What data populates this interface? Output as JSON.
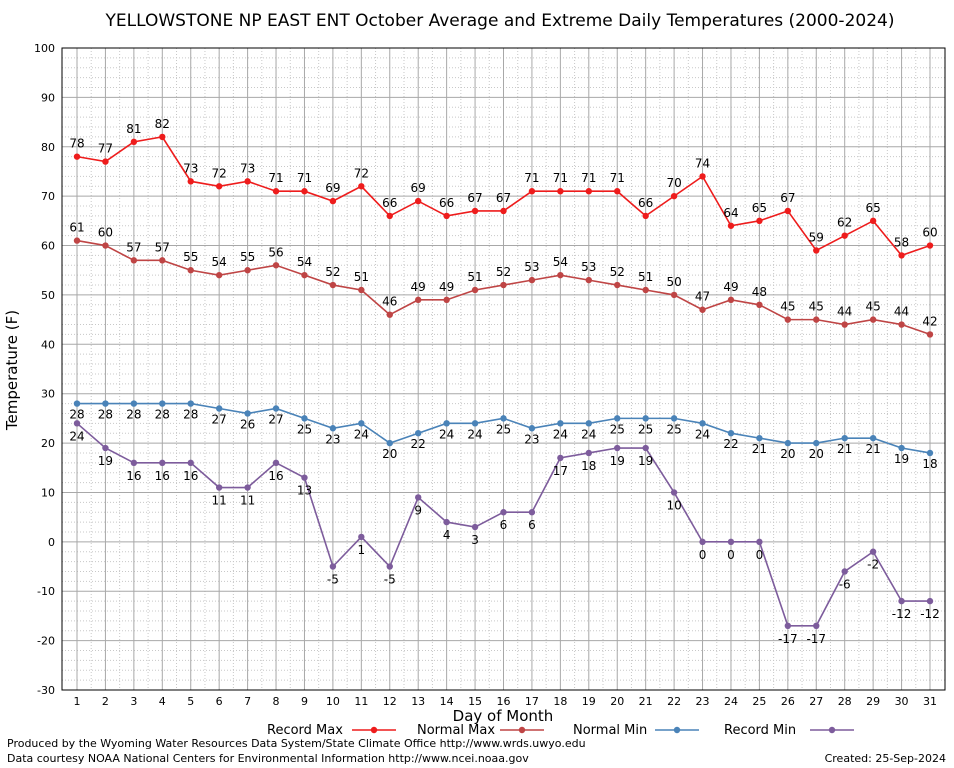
{
  "chart_data": {
    "type": "line",
    "title": "YELLOWSTONE NP EAST ENT October Average and Extreme Daily Temperatures (2000-2024)",
    "xlabel": "Day of Month",
    "ylabel": "Temperature (F)",
    "ylim": [
      -30,
      100
    ],
    "xlim": [
      1,
      31
    ],
    "yticks": [
      -30,
      -20,
      -10,
      0,
      10,
      20,
      30,
      40,
      50,
      60,
      70,
      80,
      90,
      100
    ],
    "x": [
      1,
      2,
      3,
      4,
      5,
      6,
      7,
      8,
      9,
      10,
      11,
      12,
      13,
      14,
      15,
      16,
      17,
      18,
      19,
      20,
      21,
      22,
      23,
      24,
      25,
      26,
      27,
      28,
      29,
      30,
      31
    ],
    "grid": true,
    "legend_position": "bottom",
    "series": [
      {
        "name": "Record Max",
        "color": "#ee1c1c",
        "values": [
          78,
          77,
          81,
          82,
          73,
          72,
          73,
          71,
          71,
          69,
          72,
          66,
          69,
          66,
          67,
          67,
          71,
          71,
          71,
          71,
          66,
          70,
          74,
          64,
          65,
          67,
          59,
          62,
          65,
          58,
          60
        ]
      },
      {
        "name": "Normal Max",
        "color": "#bf4545",
        "values": [
          61,
          60,
          57,
          57,
          55,
          54,
          55,
          56,
          54,
          52,
          51,
          46,
          49,
          49,
          51,
          52,
          53,
          54,
          53,
          52,
          51,
          50,
          47,
          49,
          48,
          45,
          45,
          44,
          45,
          44,
          42
        ]
      },
      {
        "name": "Normal Min",
        "color": "#4a83b8",
        "values": [
          28,
          28,
          28,
          28,
          28,
          27,
          26,
          27,
          25,
          23,
          24,
          20,
          22,
          24,
          24,
          25,
          23,
          24,
          24,
          25,
          25,
          25,
          24,
          22,
          21,
          20,
          20,
          21,
          21,
          19,
          18
        ]
      },
      {
        "name": "Record Min",
        "color": "#7d5c9c",
        "values": [
          24,
          19,
          16,
          16,
          16,
          11,
          11,
          16,
          13,
          -5,
          1,
          -5,
          9,
          4,
          3,
          6,
          6,
          17,
          18,
          19,
          19,
          10,
          0,
          0,
          0,
          -17,
          -17,
          -6,
          -2,
          -12,
          -12
        ]
      }
    ]
  },
  "footer": {
    "produced_by": "Produced by the Wyoming Water Resources Data System/State Climate Office http://www.wrds.uwyo.edu",
    "data_courtesy": "Data courtesy NOAA National Centers for Environmental Information http://www.ncei.noaa.gov",
    "created": "Created:  25-Sep-2024"
  }
}
